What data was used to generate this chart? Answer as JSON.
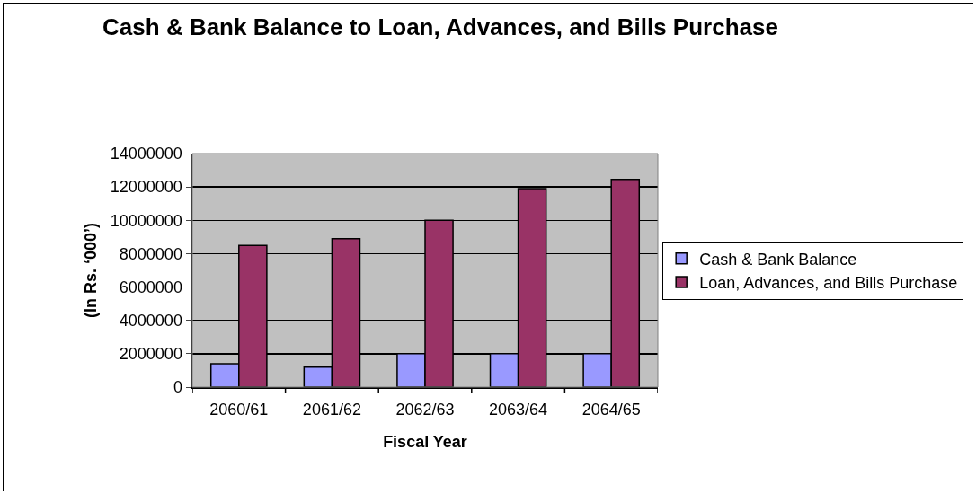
{
  "chart_data": {
    "type": "bar",
    "title": "Cash & Bank Balance to Loan, Advances, and Bills Purchase",
    "xlabel": "Fiscal Year",
    "ylabel": "(In Rs. ‘000’)",
    "categories": [
      "2060/61",
      "2061/62",
      "2062/63",
      "2063/64",
      "2064/65"
    ],
    "series": [
      {
        "name": "Cash & Bank Balance",
        "color": "#9999ff",
        "values": [
          1400000,
          1200000,
          2000000,
          2000000,
          2000000
        ]
      },
      {
        "name": "Loan, Advances, and Bills Purchase",
        "color": "#993366",
        "values": [
          8500000,
          8900000,
          10000000,
          11900000,
          12450000
        ]
      }
    ],
    "ylim": [
      0,
      14000000
    ],
    "yticks": [
      0,
      2000000,
      4000000,
      6000000,
      8000000,
      10000000,
      12000000,
      14000000
    ],
    "grid": "y",
    "legend": "right"
  }
}
